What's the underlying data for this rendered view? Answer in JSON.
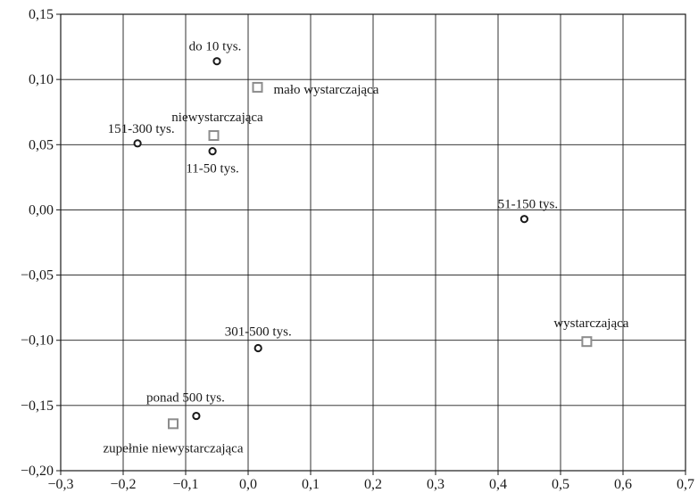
{
  "chart_data": {
    "type": "scatter",
    "title": "",
    "xlabel": "",
    "ylabel": "",
    "xlim": [
      -0.3,
      0.7
    ],
    "ylim": [
      -0.2,
      0.15
    ],
    "grid": true,
    "x_ticks": [
      "−0,3",
      "−0,2",
      "−0,1",
      "0,0",
      "0,1",
      "0,2",
      "0,3",
      "0,4",
      "0,5",
      "0,6",
      "0,7"
    ],
    "y_ticks": [
      "0,15",
      "0,10",
      "0,05",
      "0,00",
      "−0,05",
      "−0,10",
      "−0,15",
      "−0,20"
    ],
    "series": [
      {
        "marker": "circle",
        "color": "#1a1a1a",
        "points": [
          {
            "label": "do 10 tys.",
            "x": -0.05,
            "y": 0.114
          },
          {
            "label": "151-300 tys.",
            "x": -0.177,
            "y": 0.051
          },
          {
            "label": "11-50 tys.",
            "x": -0.057,
            "y": 0.045
          },
          {
            "label": "51-150 tys.",
            "x": 0.442,
            "y": -0.007
          },
          {
            "label": "301-500 tys.",
            "x": 0.016,
            "y": -0.106
          },
          {
            "label": "ponad 500 tys.",
            "x": -0.083,
            "y": -0.158
          }
        ]
      },
      {
        "marker": "square",
        "color": "#8c8c8c",
        "points": [
          {
            "label": "mało wystarczająca",
            "x": 0.015,
            "y": 0.094
          },
          {
            "label": "niewystarczająca",
            "x": -0.055,
            "y": 0.057
          },
          {
            "label": "wystarczająca",
            "x": 0.542,
            "y": -0.101
          },
          {
            "label": "zupełnie niewystarczająca",
            "x": -0.12,
            "y": -0.164
          }
        ]
      }
    ]
  }
}
